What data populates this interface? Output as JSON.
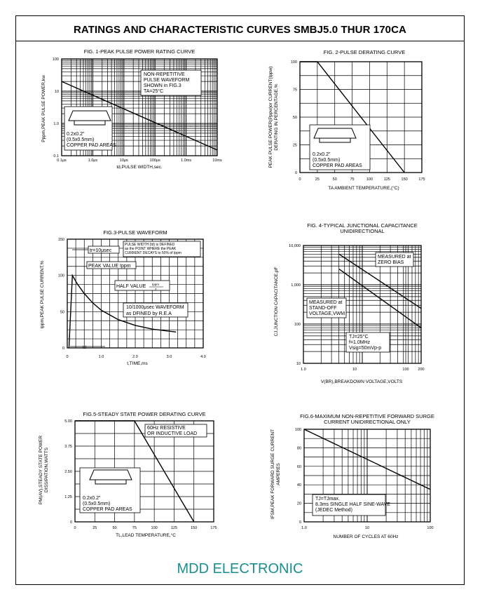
{
  "page_title": "RATINGS AND CHARACTERISTIC CURVES SMBJ5.0 THUR 170CA",
  "footer": "MDD ELECTRONIC",
  "chart_data": [
    {
      "id": "fig1",
      "type": "line",
      "title": "FIG. 1-PEAK PULSE POWER RATING CURVE",
      "xlabel": "td,PULSE WIDTH,sec.",
      "ylabel": "Pppm,PEAK PULSE POWER,kw",
      "xscale": "log",
      "yscale": "log",
      "xlim_us": [
        0.1,
        10000
      ],
      "ylim": [
        0.1,
        100
      ],
      "xticks": [
        "0.1μs",
        "1.0μs",
        "10μs",
        "100μs",
        "1.0ms",
        "10ms"
      ],
      "yticks": [
        "100",
        "10",
        "1.0",
        "0.1"
      ],
      "grid": true,
      "series": [
        {
          "x_us": [
            0.1,
            10000
          ],
          "y": [
            20,
            0.15
          ]
        }
      ],
      "annotations": [
        "NON-REPETITIVE",
        "PULSE WAVEFORM",
        "SHOWN in FIG.3",
        "TA=25°C"
      ],
      "pad_note": [
        "0.2x0.2\"",
        "(0.5x0.5mm)",
        "COPPER PAD AREAS"
      ]
    },
    {
      "id": "fig2",
      "type": "line",
      "title": "FIG. 2-PULSE DERATING CURVE",
      "xlabel": "TA AMBIENT TEMPERATURE,(°C)",
      "ylabel_lines": [
        "PEAK PULSE POWER(Pppw)or CURRENT(Ippw)",
        "DERATING IN PERCENTAGE,%"
      ],
      "xlim": [
        0,
        175
      ],
      "ylim": [
        0,
        100
      ],
      "xticks": [
        0,
        25,
        50,
        75,
        100,
        125,
        150,
        175
      ],
      "yticks": [
        0,
        25,
        50,
        75,
        100
      ],
      "grid": true,
      "series": [
        {
          "x": [
            0,
            25,
            150
          ],
          "y": [
            100,
            100,
            0
          ]
        }
      ],
      "pad_note": [
        "0.2x0.2\"",
        "(0.5x0.5mm)",
        "COPPER PAD AREAS"
      ]
    },
    {
      "id": "fig3",
      "type": "line",
      "title": "FIG.3-PULSE WAVEFORM",
      "xlabel": "t,TIME,ms",
      "ylabel": "Ippm,PEAK PULSE CURRENT,%",
      "xlim": [
        0,
        4.0
      ],
      "ylim": [
        0,
        150
      ],
      "xticks": [
        "0",
        "1.0",
        "2.0",
        "3.0",
        "4.0"
      ],
      "yticks": [
        "0",
        "50",
        "100",
        "150"
      ],
      "grid": true,
      "series": [
        {
          "x": [
            0.05,
            0.15,
            0.3,
            0.5,
            0.75,
            1.0,
            1.5,
            2.0,
            2.5,
            3.0,
            3.2
          ],
          "y": [
            0,
            100,
            88,
            75,
            62,
            52,
            39,
            31,
            26,
            23,
            22
          ]
        }
      ],
      "annotations": {
        "tr": "tr=10μsec",
        "note": [
          "PULSE WIDTH (td) is DEFINED",
          "as the POINT WHERE the PEAK",
          "CURRENT DECAYS to 50% of Ippm"
        ],
        "peak": "PEAK VALUE Ippm",
        "half": "HALF VALUE",
        "half_frac_num": "Ippm",
        "half_frac_den": "2",
        "wave": [
          "10/1000μsec WAVEFORM",
          "as DFINED by R.E.A"
        ],
        "td": "td"
      }
    },
    {
      "id": "fig4",
      "type": "line",
      "title_lines": [
        "FIG. 4-TYPICAL JUNCTIONAL CAPACITANCE",
        "UNIDIRECTIONAL"
      ],
      "xlabel": "V(BR),BREAKDOWN VOLTAGE,VOLTS",
      "ylabel": "CJ,JUNCTION CAPACITANCE,pF",
      "xscale": "log",
      "yscale": "log",
      "xlim": [
        1,
        200
      ],
      "ylim": [
        10,
        10000
      ],
      "xticks": [
        "1.0",
        "10",
        "100",
        "200"
      ],
      "yticks": [
        "10,000",
        "1,000",
        "100",
        "10"
      ],
      "grid": true,
      "series": [
        {
          "name": "MEASURED at ZERO BIAS",
          "x": [
            5,
            200
          ],
          "y": [
            6000,
            250
          ]
        },
        {
          "name": "MEASURED at STAND-OFF VOLTAGE,VWM",
          "x": [
            5,
            200
          ],
          "y": [
            2500,
            80
          ]
        }
      ],
      "labels": {
        "zero_bias": [
          "MEASURED at",
          "ZERO BIAS"
        ],
        "standoff": [
          "MEASURED at",
          "STAND-OFF",
          "VOLTAGE,VWM"
        ],
        "conditions": [
          "TJ=25°C",
          "f=1.0MHz",
          "Vsig=50mVp-p"
        ]
      }
    },
    {
      "id": "fig5",
      "type": "line",
      "title": "FIG.5-STEADY STATE POWER DERATING CURVE",
      "xlabel": "TL,LEAD TEMPERATURE,°C",
      "ylabel_lines": [
        "PM(AV),STEADY STATE POWER",
        "DISSIPATION,WATTS"
      ],
      "xlim": [
        0,
        175
      ],
      "ylim": [
        0,
        5.0
      ],
      "xticks": [
        0,
        25,
        50,
        75,
        100,
        125,
        150,
        175
      ],
      "yticks": [
        "0",
        "1.25",
        "2.50",
        "3.75",
        "5.00"
      ],
      "grid": true,
      "series": [
        {
          "x": [
            0,
            75,
            150
          ],
          "y": [
            5.0,
            5.0,
            0
          ]
        }
      ],
      "annotations": [
        "60Hz RESISTIVE",
        "OR INDUCTIVE  LOAD"
      ],
      "pad_note": [
        "0.2x0.2\"",
        "(0.5x0.5mm)",
        "COPPER PAD AREAS"
      ]
    },
    {
      "id": "fig6",
      "type": "line",
      "title_lines": [
        "FIG.6-MAXIMUM NON-REPETITIVE FORWARD SURGE",
        "CURRENT UNIDIRECTIONAL ONLY"
      ],
      "xlabel": "NUMBER OF CYCLES AT 60Hz",
      "ylabel_lines": [
        "IFSM,PEAK FORWARD SURGE CURRENT",
        "AMPERES"
      ],
      "xscale": "log",
      "xlim": [
        1,
        100
      ],
      "ylim": [
        0,
        100
      ],
      "xticks": [
        "1.0",
        "10",
        "100"
      ],
      "yticks": [
        0,
        20,
        40,
        60,
        80,
        100
      ],
      "grid": true,
      "series": [
        {
          "x": [
            1,
            100
          ],
          "y": [
            100,
            35
          ]
        }
      ],
      "annotations": [
        "TJ=TJmax.",
        "8.3ms SINGLE HALF SINE-WAVE",
        "(JEDEC Method)"
      ]
    }
  ]
}
